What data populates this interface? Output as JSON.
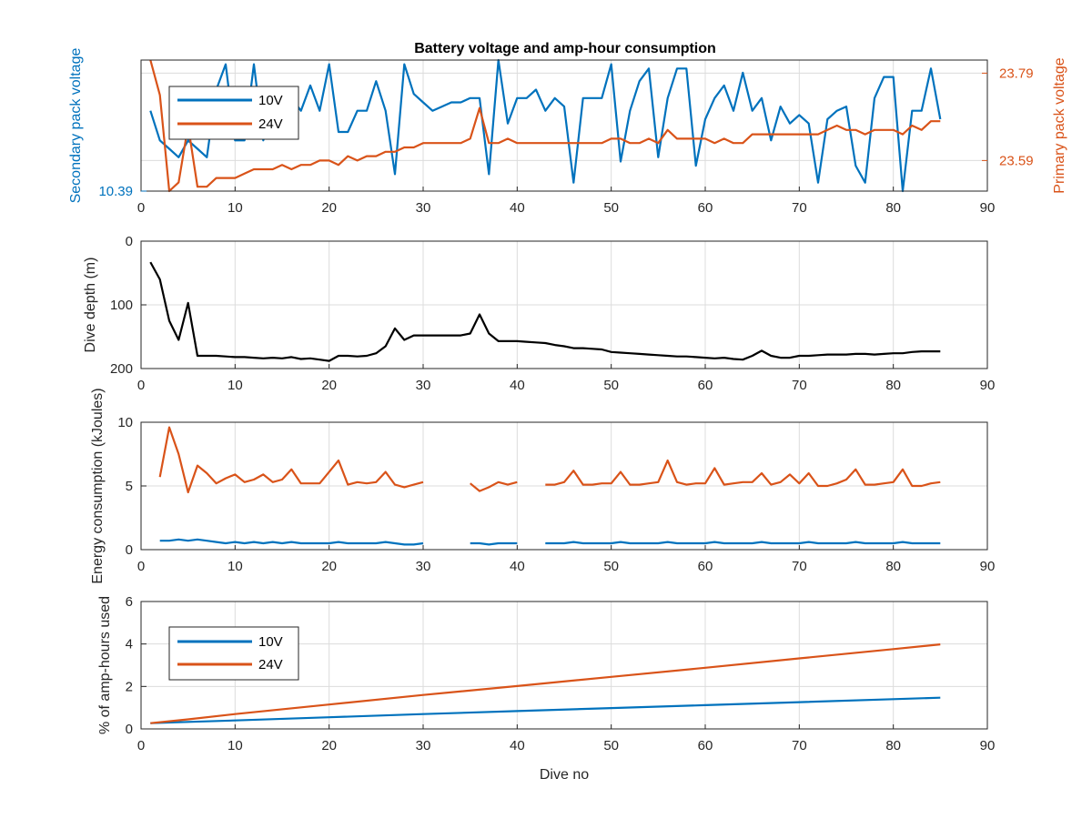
{
  "figure": {
    "title": "Battery voltage and amp-hour consumption",
    "xlabel": "Dive no"
  },
  "colors": {
    "blue": "#0072BD",
    "orange": "#D95319",
    "black": "#000000",
    "grid": "#dcdcdc",
    "axis": "#262626"
  },
  "chart_data": [
    {
      "type": "line",
      "title": "Battery voltage and amp-hour consumption",
      "xlim": [
        0,
        90
      ],
      "xticks": [
        0,
        10,
        20,
        30,
        40,
        50,
        60,
        70,
        80,
        90
      ],
      "grid": true,
      "legend_position": "top-left",
      "y_left": {
        "label": "Secondary pack voltage",
        "color": "#0072BD",
        "ylim": [
          10.39,
          10.7
        ],
        "ticks": [
          10.39
        ]
      },
      "y_right": {
        "label": "Primary pack voltage",
        "color": "#D95319",
        "ylim": [
          23.52,
          23.82
        ],
        "ticks": [
          23.59,
          23.79
        ]
      },
      "series": [
        {
          "name": "10V",
          "axis": "left",
          "color": "#0072BD",
          "x": [
            1,
            2,
            3,
            4,
            5,
            6,
            7,
            8,
            9,
            10,
            11,
            12,
            13,
            14,
            15,
            16,
            17,
            18,
            19,
            20,
            21,
            22,
            23,
            24,
            25,
            26,
            27,
            28,
            29,
            30,
            31,
            32,
            33,
            34,
            35,
            36,
            37,
            38,
            39,
            40,
            41,
            42,
            43,
            44,
            45,
            46,
            47,
            48,
            49,
            50,
            51,
            52,
            53,
            54,
            55,
            56,
            57,
            58,
            59,
            60,
            61,
            62,
            63,
            64,
            65,
            66,
            67,
            68,
            69,
            70,
            71,
            72,
            73,
            74,
            75,
            76,
            77,
            78,
            79,
            80,
            81,
            82,
            83,
            84,
            85
          ],
          "values": [
            10.58,
            10.51,
            10.49,
            10.47,
            10.51,
            10.49,
            10.47,
            10.63,
            10.69,
            10.51,
            10.51,
            10.69,
            10.51,
            10.58,
            10.61,
            10.61,
            10.58,
            10.64,
            10.58,
            10.69,
            10.53,
            10.53,
            10.58,
            10.58,
            10.65,
            10.58,
            10.43,
            10.69,
            10.62,
            10.6,
            10.58,
            10.59,
            10.6,
            10.6,
            10.61,
            10.61,
            10.43,
            10.7,
            10.55,
            10.61,
            10.61,
            10.63,
            10.58,
            10.61,
            10.59,
            10.41,
            10.61,
            10.61,
            10.61,
            10.69,
            10.46,
            10.58,
            10.65,
            10.68,
            10.47,
            10.61,
            10.68,
            10.68,
            10.45,
            10.56,
            10.61,
            10.64,
            10.58,
            10.67,
            10.58,
            10.61,
            10.51,
            10.59,
            10.55,
            10.57,
            10.55,
            10.41,
            10.56,
            10.58,
            10.59,
            10.45,
            10.41,
            10.61,
            10.66,
            10.66,
            10.39,
            10.58,
            10.58,
            10.68,
            10.56
          ]
        },
        {
          "name": "24V",
          "axis": "right",
          "color": "#D95319",
          "x": [
            1,
            2,
            3,
            4,
            5,
            6,
            7,
            8,
            9,
            10,
            11,
            12,
            13,
            14,
            15,
            16,
            17,
            18,
            19,
            20,
            21,
            22,
            23,
            24,
            25,
            26,
            27,
            28,
            29,
            30,
            31,
            32,
            33,
            34,
            35,
            36,
            37,
            38,
            39,
            40,
            41,
            42,
            43,
            44,
            45,
            46,
            47,
            48,
            49,
            50,
            51,
            52,
            53,
            54,
            55,
            56,
            57,
            58,
            59,
            60,
            61,
            62,
            63,
            64,
            65,
            66,
            67,
            68,
            69,
            70,
            71,
            72,
            73,
            74,
            75,
            76,
            77,
            78,
            79,
            80,
            81,
            82,
            83,
            84,
            85
          ],
          "values": [
            23.82,
            23.74,
            23.52,
            23.54,
            23.67,
            23.53,
            23.53,
            23.55,
            23.55,
            23.55,
            23.56,
            23.57,
            23.57,
            23.57,
            23.58,
            23.57,
            23.58,
            23.58,
            23.59,
            23.59,
            23.58,
            23.6,
            23.59,
            23.6,
            23.6,
            23.61,
            23.61,
            23.62,
            23.62,
            23.63,
            23.63,
            23.63,
            23.63,
            23.63,
            23.64,
            23.71,
            23.63,
            23.63,
            23.64,
            23.63,
            23.63,
            23.63,
            23.63,
            23.63,
            23.63,
            23.63,
            23.63,
            23.63,
            23.63,
            23.64,
            23.64,
            23.63,
            23.63,
            23.64,
            23.63,
            23.66,
            23.64,
            23.64,
            23.64,
            23.64,
            23.63,
            23.64,
            23.63,
            23.63,
            23.65,
            23.65,
            23.65,
            23.65,
            23.65,
            23.65,
            23.65,
            23.65,
            23.66,
            23.67,
            23.66,
            23.66,
            23.65,
            23.66,
            23.66,
            23.66,
            23.65,
            23.67,
            23.66,
            23.68,
            23.68
          ]
        }
      ]
    },
    {
      "type": "line",
      "xlim": [
        0,
        90
      ],
      "ylim": [
        200,
        0
      ],
      "y_reversed": true,
      "xticks": [
        0,
        10,
        20,
        30,
        40,
        50,
        60,
        70,
        80,
        90
      ],
      "yticks": [
        0,
        100,
        200
      ],
      "ylabel": "Dive depth (m)",
      "grid": true,
      "series": [
        {
          "color": "#000000",
          "x": [
            1,
            2,
            3,
            4,
            5,
            6,
            7,
            8,
            9,
            10,
            11,
            12,
            13,
            14,
            15,
            16,
            17,
            18,
            19,
            20,
            21,
            22,
            23,
            24,
            25,
            26,
            27,
            28,
            29,
            30,
            31,
            32,
            33,
            34,
            35,
            36,
            37,
            38,
            39,
            40,
            41,
            42,
            43,
            44,
            45,
            46,
            47,
            48,
            49,
            50,
            51,
            52,
            53,
            54,
            55,
            56,
            57,
            58,
            59,
            60,
            61,
            62,
            63,
            64,
            65,
            66,
            67,
            68,
            69,
            70,
            71,
            72,
            73,
            74,
            75,
            76,
            77,
            78,
            79,
            80,
            81,
            82,
            83,
            84,
            85
          ],
          "values": [
            33,
            60,
            125,
            155,
            97,
            180,
            180,
            180,
            181,
            182,
            182,
            183,
            184,
            183,
            184,
            182,
            185,
            184,
            186,
            188,
            180,
            180,
            181,
            180,
            176,
            165,
            137,
            155,
            148,
            148,
            148,
            148,
            148,
            148,
            145,
            115,
            145,
            157,
            157,
            157,
            158,
            159,
            160,
            163,
            165,
            168,
            168,
            169,
            170,
            174,
            175,
            176,
            177,
            178,
            179,
            180,
            181,
            181,
            182,
            183,
            184,
            183,
            185,
            186,
            180,
            172,
            180,
            183,
            183,
            180,
            180,
            179,
            178,
            178,
            178,
            177,
            177,
            178,
            177,
            176,
            176,
            174,
            173,
            173,
            173
          ]
        }
      ]
    },
    {
      "type": "line",
      "xlim": [
        0,
        90
      ],
      "ylim": [
        0,
        10
      ],
      "xticks": [
        0,
        10,
        20,
        30,
        40,
        50,
        60,
        70,
        80,
        90
      ],
      "yticks": [
        0,
        5,
        10
      ],
      "ylabel": "Energy consumption (kJoules)",
      "grid": true,
      "series": [
        {
          "color": "#D95319",
          "segments": [
            {
              "x": [
                2,
                3,
                4,
                5,
                6,
                7,
                8,
                9,
                10,
                11,
                12,
                13,
                14,
                15,
                16,
                17,
                18,
                19,
                20,
                21,
                22,
                23,
                24,
                25,
                26,
                27,
                28,
                29,
                30
              ],
              "values": [
                5.7,
                9.6,
                7.5,
                4.5,
                6.6,
                6.0,
                5.2,
                5.6,
                5.9,
                5.3,
                5.5,
                5.9,
                5.3,
                5.5,
                6.3,
                5.2,
                5.2,
                5.2,
                6.1,
                7.0,
                5.1,
                5.3,
                5.2,
                5.3,
                6.1,
                5.1,
                4.9,
                5.1,
                5.3
              ]
            },
            {
              "x": [
                35,
                36,
                37,
                38,
                39,
                40
              ],
              "values": [
                5.2,
                4.6,
                4.9,
                5.3,
                5.1,
                5.3
              ]
            },
            {
              "x": [
                43,
                44,
                45,
                46,
                47,
                48,
                49,
                50,
                51,
                52,
                53,
                54,
                55,
                56,
                57,
                58,
                59,
                60,
                61,
                62,
                63,
                64,
                65,
                66,
                67,
                68,
                69,
                70,
                71,
                72,
                73,
                74,
                75,
                76,
                77,
                78,
                79,
                80,
                81,
                82,
                83,
                84,
                85
              ],
              "values": [
                5.1,
                5.1,
                5.3,
                6.2,
                5.1,
                5.1,
                5.2,
                5.2,
                6.1,
                5.1,
                5.1,
                5.2,
                5.3,
                7.0,
                5.3,
                5.1,
                5.2,
                5.2,
                6.4,
                5.1,
                5.2,
                5.3,
                5.3,
                6.0,
                5.1,
                5.3,
                5.9,
                5.2,
                6.0,
                5.0,
                5.0,
                5.2,
                5.5,
                6.3,
                5.1,
                5.1,
                5.2,
                5.3,
                6.3,
                5.0,
                5.0,
                5.2,
                5.3
              ]
            }
          ]
        },
        {
          "color": "#0072BD",
          "segments": [
            {
              "x": [
                2,
                3,
                4,
                5,
                6,
                7,
                8,
                9,
                10,
                11,
                12,
                13,
                14,
                15,
                16,
                17,
                18,
                19,
                20,
                21,
                22,
                23,
                24,
                25,
                26,
                27,
                28,
                29,
                30
              ],
              "values": [
                0.7,
                0.7,
                0.8,
                0.7,
                0.8,
                0.7,
                0.6,
                0.5,
                0.6,
                0.5,
                0.6,
                0.5,
                0.6,
                0.5,
                0.6,
                0.5,
                0.5,
                0.5,
                0.5,
                0.6,
                0.5,
                0.5,
                0.5,
                0.5,
                0.6,
                0.5,
                0.4,
                0.4,
                0.5
              ]
            },
            {
              "x": [
                35,
                36,
                37,
                38,
                39,
                40
              ],
              "values": [
                0.5,
                0.5,
                0.4,
                0.5,
                0.5,
                0.5
              ]
            },
            {
              "x": [
                43,
                44,
                45,
                46,
                47,
                48,
                49,
                50,
                51,
                52,
                53,
                54,
                55,
                56,
                57,
                58,
                59,
                60,
                61,
                62,
                63,
                64,
                65,
                66,
                67,
                68,
                69,
                70,
                71,
                72,
                73,
                74,
                75,
                76,
                77,
                78,
                79,
                80,
                81,
                82,
                83,
                84,
                85
              ],
              "values": [
                0.5,
                0.5,
                0.5,
                0.6,
                0.5,
                0.5,
                0.5,
                0.5,
                0.6,
                0.5,
                0.5,
                0.5,
                0.5,
                0.6,
                0.5,
                0.5,
                0.5,
                0.5,
                0.6,
                0.5,
                0.5,
                0.5,
                0.5,
                0.6,
                0.5,
                0.5,
                0.5,
                0.5,
                0.6,
                0.5,
                0.5,
                0.5,
                0.5,
                0.6,
                0.5,
                0.5,
                0.5,
                0.5,
                0.6,
                0.5,
                0.5,
                0.5,
                0.5
              ]
            }
          ]
        }
      ]
    },
    {
      "type": "line",
      "xlim": [
        0,
        90
      ],
      "ylim": [
        0,
        6
      ],
      "xticks": [
        0,
        10,
        20,
        30,
        40,
        50,
        60,
        70,
        80,
        90
      ],
      "yticks": [
        0,
        2,
        4,
        6
      ],
      "xlabel": "Dive no",
      "ylabel": "% of amp-hours used",
      "grid": true,
      "legend_position": "top-left",
      "series": [
        {
          "name": "10V",
          "color": "#0072BD",
          "x": [
            1,
            5,
            10,
            20,
            30,
            40,
            50,
            60,
            70,
            80,
            85
          ],
          "values": [
            0.27,
            0.33,
            0.4,
            0.55,
            0.7,
            0.84,
            0.98,
            1.12,
            1.26,
            1.4,
            1.47
          ]
        },
        {
          "name": "24V",
          "color": "#D95319",
          "x": [
            1,
            5,
            10,
            20,
            30,
            40,
            50,
            60,
            70,
            80,
            85
          ],
          "values": [
            0.27,
            0.45,
            0.7,
            1.15,
            1.6,
            2.02,
            2.45,
            2.88,
            3.32,
            3.76,
            3.98
          ]
        }
      ]
    }
  ]
}
